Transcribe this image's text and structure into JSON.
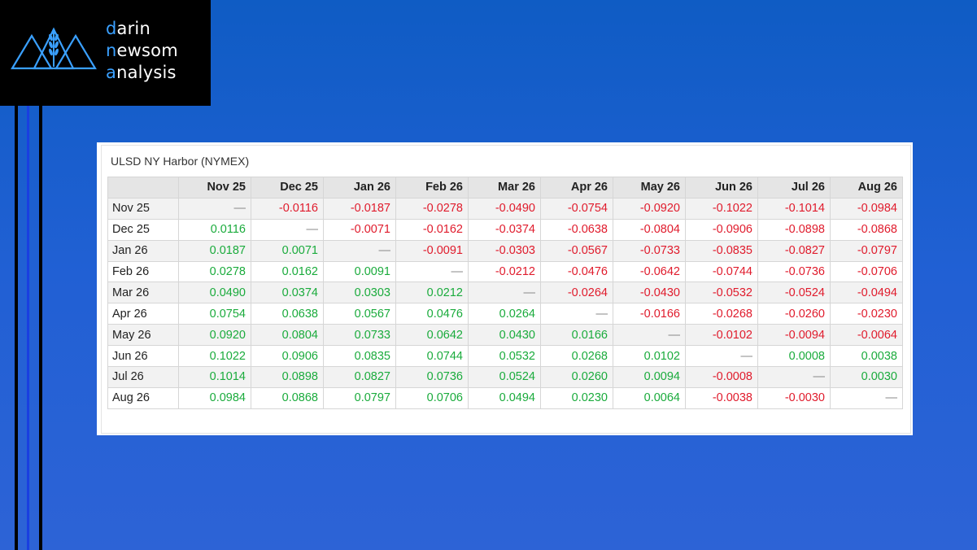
{
  "brand": {
    "line1_initial": "d",
    "line1_rest": "arin",
    "line2_initial": "n",
    "line2_rest": "ewsom",
    "line3_initial": "a",
    "line3_rest": "nalysis",
    "logo_icon": "mountains-wheat-icon",
    "accent_color": "#3aa0ff"
  },
  "table": {
    "title": "ULSD NY Harbor (NYMEX)",
    "columns": [
      "Nov 25",
      "Dec 25",
      "Jan 26",
      "Feb 26",
      "Mar 26",
      "Apr 26",
      "May 26",
      "Jun 26",
      "Jul 26",
      "Aug 26"
    ],
    "rows": [
      {
        "label": "Nov 25",
        "cells": [
          "—",
          "-0.0116",
          "-0.0187",
          "-0.0278",
          "-0.0490",
          "-0.0754",
          "-0.0920",
          "-0.1022",
          "-0.1014",
          "-0.0984"
        ]
      },
      {
        "label": "Dec 25",
        "cells": [
          "0.0116",
          "—",
          "-0.0071",
          "-0.0162",
          "-0.0374",
          "-0.0638",
          "-0.0804",
          "-0.0906",
          "-0.0898",
          "-0.0868"
        ]
      },
      {
        "label": "Jan 26",
        "cells": [
          "0.0187",
          "0.0071",
          "—",
          "-0.0091",
          "-0.0303",
          "-0.0567",
          "-0.0733",
          "-0.0835",
          "-0.0827",
          "-0.0797"
        ]
      },
      {
        "label": "Feb 26",
        "cells": [
          "0.0278",
          "0.0162",
          "0.0091",
          "—",
          "-0.0212",
          "-0.0476",
          "-0.0642",
          "-0.0744",
          "-0.0736",
          "-0.0706"
        ]
      },
      {
        "label": "Mar 26",
        "cells": [
          "0.0490",
          "0.0374",
          "0.0303",
          "0.0212",
          "—",
          "-0.0264",
          "-0.0430",
          "-0.0532",
          "-0.0524",
          "-0.0494"
        ]
      },
      {
        "label": "Apr 26",
        "cells": [
          "0.0754",
          "0.0638",
          "0.0567",
          "0.0476",
          "0.0264",
          "—",
          "-0.0166",
          "-0.0268",
          "-0.0260",
          "-0.0230"
        ]
      },
      {
        "label": "May 26",
        "cells": [
          "0.0920",
          "0.0804",
          "0.0733",
          "0.0642",
          "0.0430",
          "0.0166",
          "—",
          "-0.0102",
          "-0.0094",
          "-0.0064"
        ]
      },
      {
        "label": "Jun 26",
        "cells": [
          "0.1022",
          "0.0906",
          "0.0835",
          "0.0744",
          "0.0532",
          "0.0268",
          "0.0102",
          "—",
          "0.0008",
          "0.0038"
        ]
      },
      {
        "label": "Jul 26",
        "cells": [
          "0.1014",
          "0.0898",
          "0.0827",
          "0.0736",
          "0.0524",
          "0.0260",
          "0.0094",
          "-0.0008",
          "—",
          "0.0030"
        ]
      },
      {
        "label": "Aug 26",
        "cells": [
          "0.0984",
          "0.0868",
          "0.0797",
          "0.0706",
          "0.0494",
          "0.0230",
          "0.0064",
          "-0.0038",
          "-0.0030",
          "—"
        ]
      }
    ],
    "colors": {
      "positive": "#1aab3c",
      "negative": "#e01b2c",
      "neutral": "#888888"
    }
  }
}
